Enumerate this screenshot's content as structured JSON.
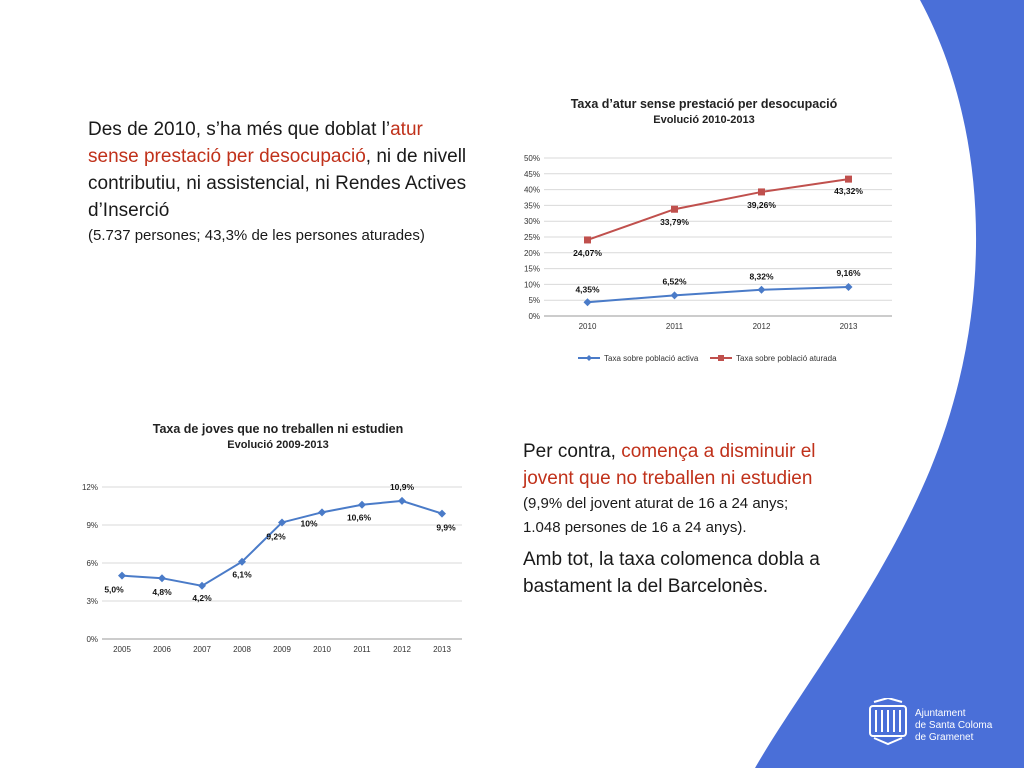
{
  "text_top": {
    "part1": "Des de 2010, s’ha més que doblat  l’",
    "red": "atur sense prestació per desocupació",
    "part2": ", ni de nivell contributiu, ni assistencial, ni Rendes Actives d’Inserció",
    "note": "(5.737 persones; 43,3% de les persones aturades)"
  },
  "text_bottom": {
    "part1": "Per contra,  ",
    "red": "comença a disminuir el jovent que no treballen ni estudien",
    "note1": "(9,9% del jovent aturat de 16 a 24 anys;",
    "note2": "1.048 persones de 16 a 24 anys).",
    "para2": "Amb tot, la taxa colomenca dobla a bastament la del Barcelonès."
  },
  "logo": {
    "line1": "Ajuntament",
    "line2": "de Santa Coloma",
    "line3": "de Gramenet"
  },
  "colors": {
    "blue_band": "#4a6fd8",
    "series_active": "#4a7bc8",
    "series_unemployed": "#c0504d",
    "youth": "#4a7bc8"
  },
  "chart_data": [
    {
      "type": "line",
      "title": "Taxa d’atur sense prestació per desocupació",
      "subtitle": "Evolució 2010-2013",
      "categories": [
        "2010",
        "2011",
        "2012",
        "2013"
      ],
      "ylim": [
        0,
        50
      ],
      "yticks": [
        "0%",
        "5%",
        "10%",
        "15%",
        "20%",
        "25%",
        "30%",
        "35%",
        "40%",
        "45%",
        "50%"
      ],
      "series": [
        {
          "name": "Taxa sobre població activa",
          "values": [
            4.35,
            6.52,
            8.32,
            9.16
          ],
          "labels": [
            "4,35%",
            "6,52%",
            "8,32%",
            "9,16%"
          ]
        },
        {
          "name": "Taxa sobre població aturada",
          "values": [
            24.07,
            33.79,
            39.26,
            43.32
          ],
          "labels": [
            "24,07%",
            "33,79%",
            "39,26%",
            "43,32%"
          ]
        }
      ],
      "grid": true,
      "legend": "bottom"
    },
    {
      "type": "line",
      "title": "Taxa de joves que no treballen ni estudien",
      "subtitle": "Evolució 2009-2013",
      "categories": [
        "2005",
        "2006",
        "2007",
        "2008",
        "2009",
        "2010",
        "2011",
        "2012",
        "2013"
      ],
      "ylim": [
        0,
        12
      ],
      "yticks": [
        "0%",
        "3%",
        "6%",
        "9%",
        "12%"
      ],
      "series": [
        {
          "values": [
            5.0,
            4.8,
            4.2,
            6.1,
            9.2,
            10.0,
            10.6,
            10.9,
            9.9
          ],
          "labels": [
            "5,0%",
            "4,8%",
            "4,2%",
            "6,1%",
            "9,2%",
            "10%",
            "10,6%",
            "10,9%",
            "9,9%"
          ]
        }
      ],
      "grid": true
    }
  ]
}
